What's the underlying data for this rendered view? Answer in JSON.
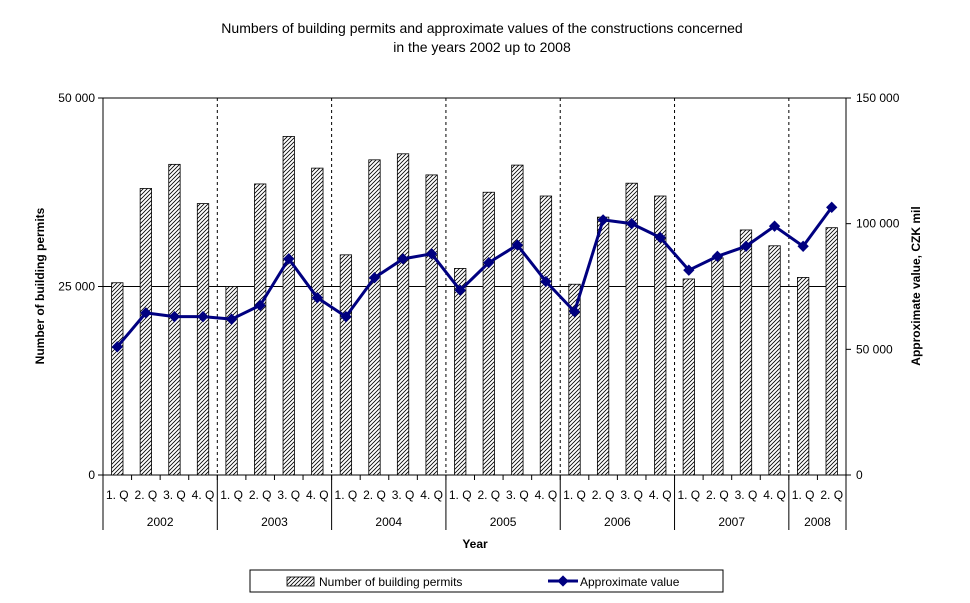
{
  "chart_data": {
    "type": "bar+line",
    "title": [
      "Numbers of building permits and approximate values of the constructions concerned",
      "in  the years 2002 up to 2008"
    ],
    "xlabel": "Year",
    "ylabel_left": "Number of building permits",
    "ylabel_right": "Approximate value, CZK mil",
    "ylim_left": [
      0,
      50000
    ],
    "ylim_right": [
      0,
      150000
    ],
    "yticks_left": [
      {
        "value": 0,
        "label": "0"
      },
      {
        "value": 25000,
        "label": "25 000"
      },
      {
        "value": 50000,
        "label": "50 000"
      }
    ],
    "yticks_right": [
      {
        "value": 0,
        "label": "0"
      },
      {
        "value": 50000,
        "label": "50 000"
      },
      {
        "value": 100000,
        "label": "100 000"
      },
      {
        "value": 150000,
        "label": "150 000"
      }
    ],
    "reference_line_left": 25000,
    "years": [
      {
        "label": "2002",
        "quarters": 4
      },
      {
        "label": "2003",
        "quarters": 4
      },
      {
        "label": "2004",
        "quarters": 4
      },
      {
        "label": "2005",
        "quarters": 4
      },
      {
        "label": "2006",
        "quarters": 4
      },
      {
        "label": "2007",
        "quarters": 4
      },
      {
        "label": "2008",
        "quarters": 2
      }
    ],
    "categories": [
      "1. Q",
      "2. Q",
      "3. Q",
      "4. Q",
      "1. Q",
      "2. Q",
      "3. Q",
      "4. Q",
      "1. Q",
      "2. Q",
      "3. Q",
      "4. Q",
      "1. Q",
      "2. Q",
      "3. Q",
      "4. Q",
      "1. Q",
      "2. Q",
      "3. Q",
      "4. Q",
      "1. Q",
      "2. Q",
      "3. Q",
      "4. Q",
      "1. Q",
      "2. Q"
    ],
    "series": [
      {
        "name": "Number of building permits",
        "kind": "bar",
        "axis": "left",
        "pattern": "hatched",
        "values": [
          25500,
          38000,
          41200,
          36000,
          25000,
          38600,
          44900,
          40700,
          29200,
          41800,
          42600,
          39800,
          27400,
          37500,
          41100,
          37000,
          25300,
          34200,
          38700,
          37000,
          26000,
          28800,
          32500,
          30400,
          26200,
          32800
        ]
      },
      {
        "name": "Approximate value",
        "kind": "line",
        "axis": "right",
        "color": "#000080",
        "values": [
          51000,
          64500,
          63000,
          63000,
          62000,
          67500,
          86000,
          70500,
          63000,
          78500,
          86000,
          88000,
          73500,
          84500,
          91500,
          77000,
          65000,
          101500,
          100000,
          94500,
          81500,
          87000,
          91000,
          99000,
          91000,
          106500
        ]
      }
    ],
    "legend": [
      "Number of building permits",
      "Approximate value"
    ],
    "legend_position": "bottom"
  }
}
